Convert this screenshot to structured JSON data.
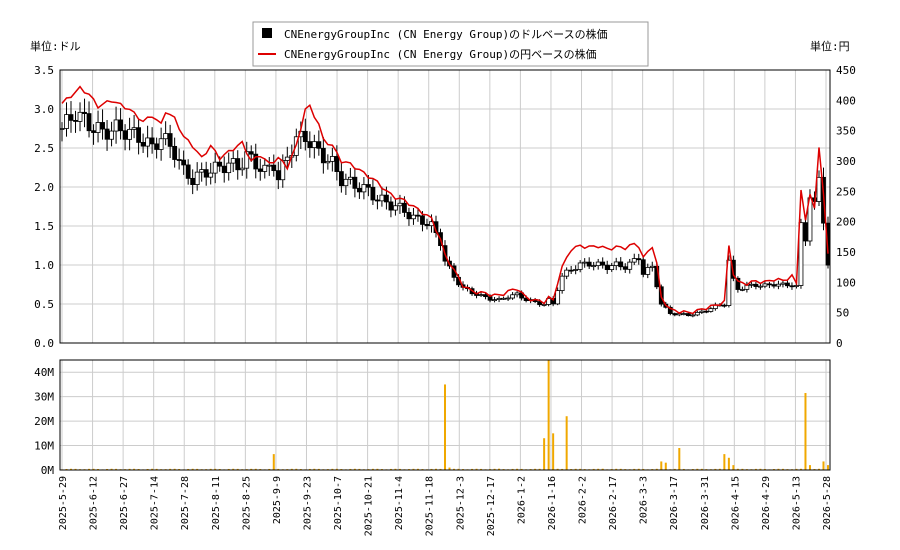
{
  "chart_data": [
    {
      "type": "candlestick-line",
      "legend": {
        "placement": "top-center",
        "entries": [
          {
            "label": "CNEnergyGroupInc (CN Energy Group)のドルベースの株価",
            "color": "#000000",
            "marker": "square"
          },
          {
            "label": "CNEnergyGroupInc (CN Energy Group)の円ベースの株価",
            "color": "#dd0000",
            "marker": "line"
          }
        ]
      },
      "y_left_unit": "単位:ドル",
      "y_right_unit": "単位:円",
      "y_left_ticks": [
        "0.0",
        "0.5",
        "1.0",
        "1.5",
        "2.0",
        "2.5",
        "3.0",
        "3.5"
      ],
      "y_right_ticks": [
        "0",
        "50",
        "100",
        "150",
        "200",
        "250",
        "300",
        "350",
        "400",
        "450"
      ],
      "ylim_left": [
        0,
        3.5
      ],
      "ylim_right": [
        0,
        450
      ],
      "grid": true,
      "x_tick_labels": [
        "2025-5-29",
        "2025-6-12",
        "2025-6-27",
        "2025-7-14",
        "2025-7-28",
        "2025-8-11",
        "2025-8-25",
        "2025-9-9",
        "2025-9-23",
        "2025-10-7",
        "2025-10-21",
        "2025-11-4",
        "2025-11-18",
        "2025-12-3",
        "2025-12-17",
        "2026-1-2",
        "2026-1-16",
        "2026-2-2",
        "2026-2-17",
        "2026-3-3",
        "2026-3-17",
        "2026-3-31",
        "2026-4-15",
        "2026-4-29",
        "2026-5-13",
        "2026-5-28"
      ],
      "usd_close_keypoints": [
        [
          0,
          2.75
        ],
        [
          3,
          2.95
        ],
        [
          6,
          2.8
        ],
        [
          9,
          2.7
        ],
        [
          12,
          2.75
        ],
        [
          15,
          2.7
        ],
        [
          18,
          2.6
        ],
        [
          20,
          2.5
        ],
        [
          22,
          2.65
        ],
        [
          25,
          2.45
        ],
        [
          27,
          2.2
        ],
        [
          29,
          2.1
        ],
        [
          32,
          2.2
        ],
        [
          35,
          2.25
        ],
        [
          37,
          2.3
        ],
        [
          39,
          2.25
        ],
        [
          41,
          2.4
        ],
        [
          43,
          2.3
        ],
        [
          45,
          2.2
        ],
        [
          47,
          2.3
        ],
        [
          48,
          2.1
        ],
        [
          50,
          2.4
        ],
        [
          52,
          2.6
        ],
        [
          54,
          2.65
        ],
        [
          56,
          2.5
        ],
        [
          58,
          2.4
        ],
        [
          60,
          2.3
        ],
        [
          62,
          2.1
        ],
        [
          64,
          2.05
        ],
        [
          66,
          2.0
        ],
        [
          68,
          1.95
        ],
        [
          70,
          1.85
        ],
        [
          72,
          1.8
        ],
        [
          74,
          1.75
        ],
        [
          76,
          1.7
        ],
        [
          78,
          1.6
        ],
        [
          80,
          1.57
        ],
        [
          82,
          1.5
        ],
        [
          84,
          1.3
        ],
        [
          85,
          1.05
        ],
        [
          87,
          0.85
        ],
        [
          89,
          0.7
        ],
        [
          91,
          0.65
        ],
        [
          93,
          0.6
        ],
        [
          95,
          0.57
        ],
        [
          97,
          0.55
        ],
        [
          99,
          0.6
        ],
        [
          101,
          0.62
        ],
        [
          103,
          0.56
        ],
        [
          105,
          0.52
        ],
        [
          107,
          0.5
        ],
        [
          108,
          0.55
        ],
        [
          109,
          0.5
        ],
        [
          110,
          0.7
        ],
        [
          111,
          0.85
        ],
        [
          113,
          0.95
        ],
        [
          115,
          1.0
        ],
        [
          117,
          1.02
        ],
        [
          119,
          1.0
        ],
        [
          121,
          0.98
        ],
        [
          123,
          1.0
        ],
        [
          125,
          0.98
        ],
        [
          127,
          1.05
        ],
        [
          128,
          1.1
        ],
        [
          129,
          0.9
        ],
        [
          131,
          0.97
        ],
        [
          132,
          0.75
        ],
        [
          133,
          0.5
        ],
        [
          135,
          0.38
        ],
        [
          137,
          0.37
        ],
        [
          139,
          0.36
        ],
        [
          141,
          0.38
        ],
        [
          143,
          0.42
        ],
        [
          145,
          0.47
        ],
        [
          147,
          0.5
        ],
        [
          148,
          1.05
        ],
        [
          149,
          0.8
        ],
        [
          150,
          0.7
        ],
        [
          152,
          0.72
        ],
        [
          154,
          0.75
        ],
        [
          156,
          0.73
        ],
        [
          158,
          0.76
        ],
        [
          160,
          0.74
        ],
        [
          162,
          0.75
        ],
        [
          163,
          0.72
        ],
        [
          164,
          1.5
        ],
        [
          165,
          1.35
        ],
        [
          166,
          1.9
        ],
        [
          167,
          1.75
        ],
        [
          168,
          2.1
        ],
        [
          169,
          1.6
        ],
        [
          170,
          1.0
        ]
      ],
      "jpy_close_keypoints": [
        [
          0,
          395
        ],
        [
          4,
          420
        ],
        [
          6,
          410
        ],
        [
          8,
          390
        ],
        [
          11,
          400
        ],
        [
          15,
          385
        ],
        [
          18,
          365
        ],
        [
          20,
          375
        ],
        [
          22,
          360
        ],
        [
          23,
          382
        ],
        [
          25,
          370
        ],
        [
          27,
          340
        ],
        [
          29,
          325
        ],
        [
          31,
          305
        ],
        [
          33,
          325
        ],
        [
          35,
          305
        ],
        [
          37,
          315
        ],
        [
          40,
          330
        ],
        [
          42,
          300
        ],
        [
          44,
          310
        ],
        [
          46,
          295
        ],
        [
          48,
          305
        ],
        [
          50,
          290
        ],
        [
          52,
          325
        ],
        [
          54,
          385
        ],
        [
          55,
          390
        ],
        [
          57,
          360
        ],
        [
          58,
          335
        ],
        [
          60,
          325
        ],
        [
          62,
          300
        ],
        [
          64,
          295
        ],
        [
          66,
          285
        ],
        [
          68,
          275
        ],
        [
          70,
          265
        ],
        [
          72,
          250
        ],
        [
          74,
          240
        ],
        [
          76,
          235
        ],
        [
          78,
          225
        ],
        [
          80,
          215
        ],
        [
          82,
          205
        ],
        [
          84,
          170
        ],
        [
          85,
          145
        ],
        [
          87,
          120
        ],
        [
          89,
          95
        ],
        [
          91,
          85
        ],
        [
          93,
          83
        ],
        [
          95,
          80
        ],
        [
          97,
          78
        ],
        [
          99,
          85
        ],
        [
          101,
          90
        ],
        [
          103,
          75
        ],
        [
          105,
          70
        ],
        [
          107,
          68
        ],
        [
          108,
          75
        ],
        [
          109,
          70
        ],
        [
          110,
          100
        ],
        [
          111,
          125
        ],
        [
          113,
          155
        ],
        [
          115,
          160
        ],
        [
          117,
          158
        ],
        [
          119,
          160
        ],
        [
          121,
          155
        ],
        [
          123,
          158
        ],
        [
          125,
          157
        ],
        [
          127,
          163
        ],
        [
          128,
          160
        ],
        [
          129,
          140
        ],
        [
          131,
          160
        ],
        [
          132,
          130
        ],
        [
          133,
          75
        ],
        [
          135,
          55
        ],
        [
          137,
          52
        ],
        [
          139,
          50
        ],
        [
          141,
          53
        ],
        [
          143,
          58
        ],
        [
          145,
          62
        ],
        [
          147,
          68
        ],
        [
          148,
          160
        ],
        [
          149,
          115
        ],
        [
          150,
          100
        ],
        [
          152,
          98
        ],
        [
          154,
          102
        ],
        [
          156,
          100
        ],
        [
          158,
          105
        ],
        [
          160,
          103
        ],
        [
          162,
          110
        ],
        [
          163,
          98
        ],
        [
          164,
          255
        ],
        [
          165,
          200
        ],
        [
          166,
          245
        ],
        [
          167,
          225
        ],
        [
          168,
          320
        ],
        [
          169,
          245
        ],
        [
          170,
          150
        ]
      ],
      "volume_axis": {
        "ticks": [
          "0M",
          "10M",
          "20M",
          "30M",
          "40M"
        ],
        "ylim": [
          0,
          45
        ]
      },
      "volume_spikes_millions": [
        [
          47,
          6.5
        ],
        [
          85,
          35
        ],
        [
          86,
          1
        ],
        [
          97,
          0.5
        ],
        [
          107,
          13
        ],
        [
          108,
          45
        ],
        [
          109,
          15
        ],
        [
          112,
          22
        ],
        [
          120,
          0.5
        ],
        [
          133,
          3.5
        ],
        [
          134,
          3
        ],
        [
          137,
          9
        ],
        [
          147,
          6.5
        ],
        [
          148,
          5
        ],
        [
          149,
          2
        ],
        [
          165,
          31.5
        ],
        [
          166,
          2
        ],
        [
          169,
          3.5
        ],
        [
          170,
          2
        ]
      ],
      "n_days": 171
    }
  ]
}
